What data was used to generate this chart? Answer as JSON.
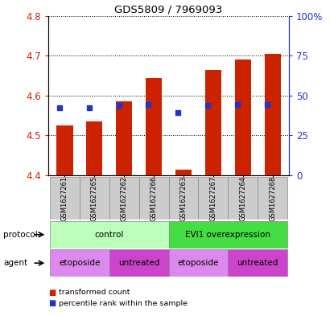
{
  "title": "GDS5809 / 7969093",
  "samples": [
    "GSM1627261",
    "GSM1627265",
    "GSM1627262",
    "GSM1627266",
    "GSM1627263",
    "GSM1627267",
    "GSM1627264",
    "GSM1627268"
  ],
  "bar_tops": [
    4.525,
    4.535,
    4.585,
    4.645,
    4.415,
    4.665,
    4.69,
    4.705
  ],
  "bar_bottom": 4.4,
  "percentile_values": [
    4.57,
    4.57,
    4.575,
    4.578,
    4.558,
    4.576,
    4.578,
    4.578
  ],
  "ylim_left": [
    4.4,
    4.8
  ],
  "ylim_right": [
    0,
    100
  ],
  "yticks_left": [
    4.4,
    4.5,
    4.6,
    4.7,
    4.8
  ],
  "yticks_right": [
    0,
    25,
    50,
    75,
    100
  ],
  "ytick_labels_right": [
    "0",
    "25",
    "50",
    "75",
    "100%"
  ],
  "bar_color": "#cc2200",
  "blue_square_color": "#2233cc",
  "sample_box_color": "#cccccc",
  "protocol_spans": [
    {
      "label": "control",
      "start": 0,
      "end": 4,
      "color": "#bbffbb"
    },
    {
      "label": "EVI1 overexpression",
      "start": 4,
      "end": 8,
      "color": "#44dd44"
    }
  ],
  "agent_spans": [
    {
      "label": "etoposide",
      "start": 0,
      "end": 2,
      "color": "#dd88ee"
    },
    {
      "label": "untreated",
      "start": 2,
      "end": 4,
      "color": "#cc44cc"
    },
    {
      "label": "etoposide",
      "start": 4,
      "end": 6,
      "color": "#dd88ee"
    },
    {
      "label": "untreated",
      "start": 6,
      "end": 8,
      "color": "#cc44cc"
    }
  ]
}
